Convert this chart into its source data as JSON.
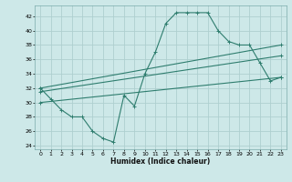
{
  "xlabel": "Humidex (Indice chaleur)",
  "bg_color": "#cde8e8",
  "line_color": "#2e7d6e",
  "grid_color": "#aecfcf",
  "xlim": [
    -0.5,
    23.5
  ],
  "ylim": [
    23.5,
    43.5
  ],
  "yticks": [
    24,
    26,
    28,
    30,
    32,
    34,
    36,
    38,
    40,
    42
  ],
  "xticks": [
    0,
    1,
    2,
    3,
    4,
    5,
    6,
    7,
    8,
    9,
    10,
    11,
    12,
    13,
    14,
    15,
    16,
    17,
    18,
    19,
    20,
    21,
    22,
    23
  ],
  "line1_x": [
    0,
    1,
    2,
    3,
    4,
    5,
    6,
    7,
    8,
    9,
    10,
    11,
    12,
    13,
    14,
    15,
    16,
    17,
    18,
    19,
    20,
    21,
    22,
    23
  ],
  "line1_y": [
    32,
    30.5,
    29,
    28,
    28,
    26,
    25,
    24.5,
    31,
    29.5,
    34,
    37,
    41,
    42.5,
    42.5,
    42.5,
    42.5,
    40,
    38.5,
    38,
    38,
    35.5,
    33,
    33.5
  ],
  "line2_x": [
    0,
    23
  ],
  "line2_y": [
    32,
    38
  ],
  "line3_x": [
    0,
    23
  ],
  "line3_y": [
    31.5,
    36.5
  ],
  "line4_x": [
    0,
    23
  ],
  "line4_y": [
    30,
    33.5
  ]
}
